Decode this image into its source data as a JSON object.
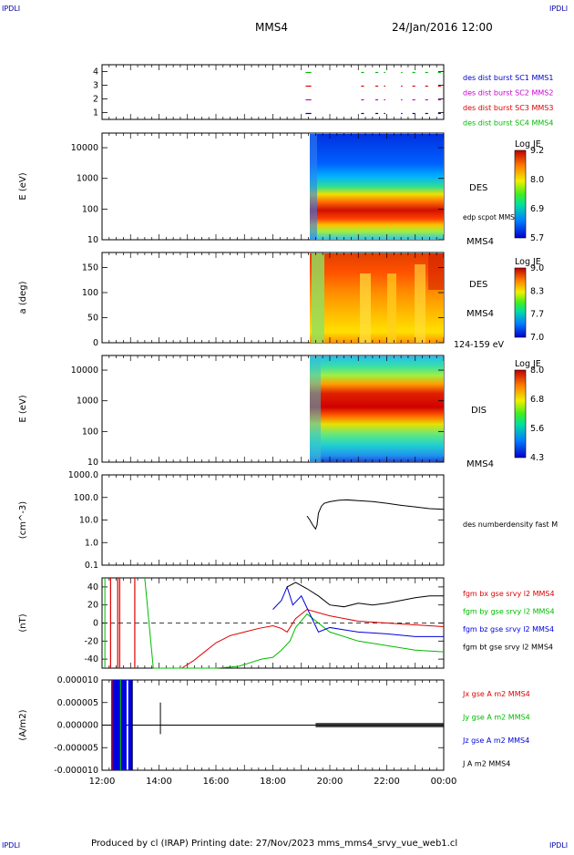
{
  "header": {
    "corner_tl": "IPDLI",
    "corner_tr": "IPDLI",
    "corner_bl": "IPDLI",
    "corner_br": "IPDLI",
    "spacecraft": "MMS4",
    "date": "24/Jan/2016 12:00"
  },
  "footer": {
    "text": "Produced by cl (IRAP)   Printing date: 27/Nov/2023   mms_mms4_srvy_vue_web1.cl"
  },
  "chart_data": [
    {
      "type": "line",
      "id": "burst",
      "yticks": [
        "1",
        "2",
        "3",
        "4"
      ],
      "ylim": [
        0.5,
        4.5
      ],
      "legend": [
        {
          "label": "des dist burst SC1 MMS1",
          "color": "#0000cc"
        },
        {
          "label": "des dist burst SC2 MMS2",
          "color": "#cc00cc"
        },
        {
          "label": "des dist burst SC3 MMS3",
          "color": "#dd0000"
        },
        {
          "label": "des dist burst SC4 MMS4",
          "color": "#00bb00"
        }
      ],
      "segments": [
        {
          "level": 4,
          "color": "#00bb00",
          "intervals": [
            [
              19.15,
              19.35
            ],
            [
              21.1,
              21.2
            ],
            [
              21.6,
              21.7
            ],
            [
              21.9,
              21.95
            ],
            [
              22.5,
              22.55
            ],
            [
              22.9,
              23.0
            ],
            [
              23.35,
              23.45
            ],
            [
              23.8,
              23.9
            ]
          ]
        },
        {
          "level": 3,
          "color": "#dd0000",
          "intervals": [
            [
              19.15,
              19.35
            ],
            [
              21.1,
              21.2
            ],
            [
              21.6,
              21.7
            ],
            [
              21.9,
              21.95
            ],
            [
              22.5,
              22.55
            ],
            [
              22.9,
              23.0
            ],
            [
              23.35,
              23.45
            ],
            [
              23.8,
              23.9
            ]
          ]
        },
        {
          "level": 2,
          "color": "#cc00cc",
          "intervals": [
            [
              19.15,
              19.35
            ],
            [
              21.1,
              21.2
            ],
            [
              21.6,
              21.7
            ],
            [
              21.9,
              21.95
            ],
            [
              22.5,
              22.55
            ],
            [
              22.9,
              23.0
            ],
            [
              23.35,
              23.45
            ],
            [
              23.8,
              23.9
            ]
          ]
        },
        {
          "level": 1,
          "color": "#0000cc",
          "intervals": [
            [
              19.15,
              19.35
            ],
            [
              21.1,
              21.2
            ],
            [
              21.6,
              21.7
            ],
            [
              21.9,
              21.95
            ],
            [
              22.5,
              22.55
            ],
            [
              22.9,
              23.0
            ],
            [
              23.35,
              23.45
            ],
            [
              23.8,
              23.9
            ]
          ]
        }
      ]
    },
    {
      "type": "heatmap",
      "id": "des-energy",
      "ylabel": "E (eV)",
      "yscale": "log",
      "ylim": [
        10,
        30000
      ],
      "yticks": [
        "10",
        "100",
        "1000",
        "10000"
      ],
      "data_start": 19.0,
      "right_labels": [
        "DES",
        "edp scpot MMS4",
        "MMS4"
      ],
      "colorbar": {
        "title": "Log JE",
        "ticks": [
          "9.2",
          "8.0",
          "6.9",
          "5.7"
        ]
      }
    },
    {
      "type": "heatmap",
      "id": "des-pitch",
      "ylabel": "a (deg)",
      "ylim": [
        0,
        180
      ],
      "yticks": [
        "0",
        "50",
        "100",
        "150"
      ],
      "data_start": 19.0,
      "right_labels": [
        "DES",
        "MMS4",
        "124-159 eV"
      ],
      "colorbar": {
        "title": "Log JE",
        "ticks": [
          "9.0",
          "8.3",
          "7.7",
          "7.0"
        ]
      }
    },
    {
      "type": "heatmap",
      "id": "dis-energy",
      "ylabel": "E (eV)",
      "yscale": "log",
      "ylim": [
        10,
        30000
      ],
      "yticks": [
        "10",
        "100",
        "1000",
        "10000"
      ],
      "data_start": 19.0,
      "right_labels": [
        "DIS",
        "MMS4"
      ],
      "colorbar": {
        "title": "Log JE",
        "ticks": [
          "8.0",
          "6.8",
          "5.6",
          "4.3"
        ]
      }
    },
    {
      "type": "line",
      "id": "density",
      "ylabel": "(cm^-3)",
      "yscale": "log",
      "ylim": [
        0.1,
        1000
      ],
      "yticks": [
        "0.1",
        "1.0",
        "10.0",
        "100.0",
        "1000.0"
      ],
      "series": [
        {
          "name": "des numberdensity fast M",
          "color": "#000000",
          "x": [
            19.2,
            19.3,
            19.4,
            19.5,
            19.55,
            19.6,
            19.7,
            19.8,
            20.0,
            20.3,
            20.6,
            21.0,
            21.5,
            22.0,
            22.5,
            23.0,
            23.5,
            24.0
          ],
          "y": [
            15,
            10,
            6,
            4,
            6,
            20,
            40,
            55,
            65,
            75,
            78,
            72,
            66,
            55,
            45,
            38,
            32,
            30
          ]
        }
      ]
    },
    {
      "type": "line",
      "id": "bfield",
      "ylabel": "(nT)",
      "ylim": [
        -50,
        50
      ],
      "yticks": [
        "-40",
        "-20",
        "0",
        "20",
        "40"
      ],
      "series": [
        {
          "name": "fgm bx gse srvy l2 MMS4",
          "color": "#dd0000",
          "x": [
            14.8,
            15.2,
            15.6,
            16.0,
            16.5,
            17.0,
            17.5,
            18.0,
            18.3,
            18.5,
            18.8,
            19.2,
            20.0,
            21.0,
            22.0,
            23.0,
            24.0
          ],
          "y": [
            -50,
            -42,
            -32,
            -22,
            -14,
            -10,
            -6,
            -3,
            -6,
            -10,
            5,
            15,
            8,
            2,
            0,
            -2,
            -4
          ]
        },
        {
          "name": "fgm by gse srvy l2 MMS4",
          "color": "#00bb00",
          "x": [
            13.5,
            13.8,
            16.0,
            16.8,
            17.2,
            17.6,
            18.0,
            18.3,
            18.6,
            18.8,
            19.2,
            20.0,
            21.0,
            22.0,
            23.0,
            24.0
          ],
          "y": [
            50,
            -50,
            -50,
            -48,
            -44,
            -40,
            -38,
            -30,
            -20,
            -5,
            10,
            -10,
            -20,
            -25,
            -30,
            -32
          ]
        },
        {
          "name": "fgm bz gse srvy l2 MMS4",
          "color": "#0000dd",
          "x": [
            18.0,
            18.3,
            18.5,
            18.7,
            19.0,
            19.3,
            19.6,
            20.0,
            21.0,
            22.0,
            23.0,
            24.0
          ],
          "y": [
            15,
            25,
            40,
            20,
            30,
            10,
            -10,
            -5,
            -10,
            -12,
            -15,
            -15
          ]
        },
        {
          "name": "fgm bt gse srvy l2 MMS4",
          "color": "#000000",
          "x": [
            18.5,
            18.8,
            19.2,
            19.6,
            20.0,
            20.5,
            21.0,
            21.5,
            22.0,
            22.5,
            23.0,
            23.5,
            24.0
          ],
          "y": [
            40,
            45,
            38,
            30,
            20,
            18,
            22,
            20,
            22,
            25,
            28,
            30,
            30
          ]
        }
      ]
    },
    {
      "type": "line",
      "id": "current",
      "ylabel": "(A/m2)",
      "ylim": [
        -1e-05,
        1e-05
      ],
      "yticks": [
        "-0.000010",
        "-0.000005",
        "0.000000",
        "0.000005",
        "0.000010"
      ],
      "xticks": [
        "12:00",
        "14:00",
        "16:00",
        "18:00",
        "20:00",
        "22:00",
        "00:00"
      ],
      "xlim": [
        12,
        24
      ],
      "series": [
        {
          "name": "Jx gse A m2 MMS4",
          "color": "#dd0000"
        },
        {
          "name": "Jy gse A m2 MMS4",
          "color": "#00bb00"
        },
        {
          "name": "Jz gse A m2 MMS4",
          "color": "#0000dd"
        },
        {
          "name": "J A m2 MMS4",
          "color": "#000000"
        }
      ]
    }
  ]
}
